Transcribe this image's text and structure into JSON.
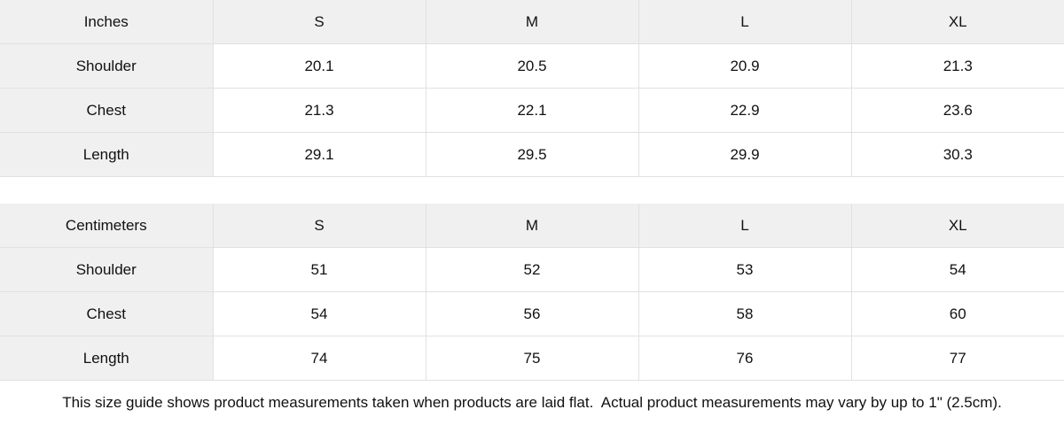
{
  "colors": {
    "header_fill": "#f0f0f0",
    "row_label_fill": "#f0f0f0",
    "cell_fill": "#ffffff",
    "border": "#e1e1e1",
    "text": "#111111"
  },
  "chart_data": [
    {
      "type": "table",
      "unit": "Inches",
      "size_columns": [
        "S",
        "M",
        "L",
        "XL"
      ],
      "rows": [
        {
          "label": "Shoulder",
          "values": [
            20.1,
            20.5,
            20.9,
            21.3
          ]
        },
        {
          "label": "Chest",
          "values": [
            21.3,
            22.1,
            22.9,
            23.6
          ]
        },
        {
          "label": "Length",
          "values": [
            29.1,
            29.5,
            29.9,
            30.3
          ]
        }
      ]
    },
    {
      "type": "table",
      "unit": "Centimeters",
      "size_columns": [
        "S",
        "M",
        "L",
        "XL"
      ],
      "rows": [
        {
          "label": "Shoulder",
          "values": [
            51,
            52,
            53,
            54
          ]
        },
        {
          "label": "Chest",
          "values": [
            54,
            56,
            58,
            60
          ]
        },
        {
          "label": "Length",
          "values": [
            74,
            75,
            76,
            77
          ]
        }
      ]
    }
  ],
  "footer": {
    "note": "This size guide shows product measurements taken when products are laid flat.  Actual product measurements may vary by up to 1\" (2.5cm)."
  }
}
